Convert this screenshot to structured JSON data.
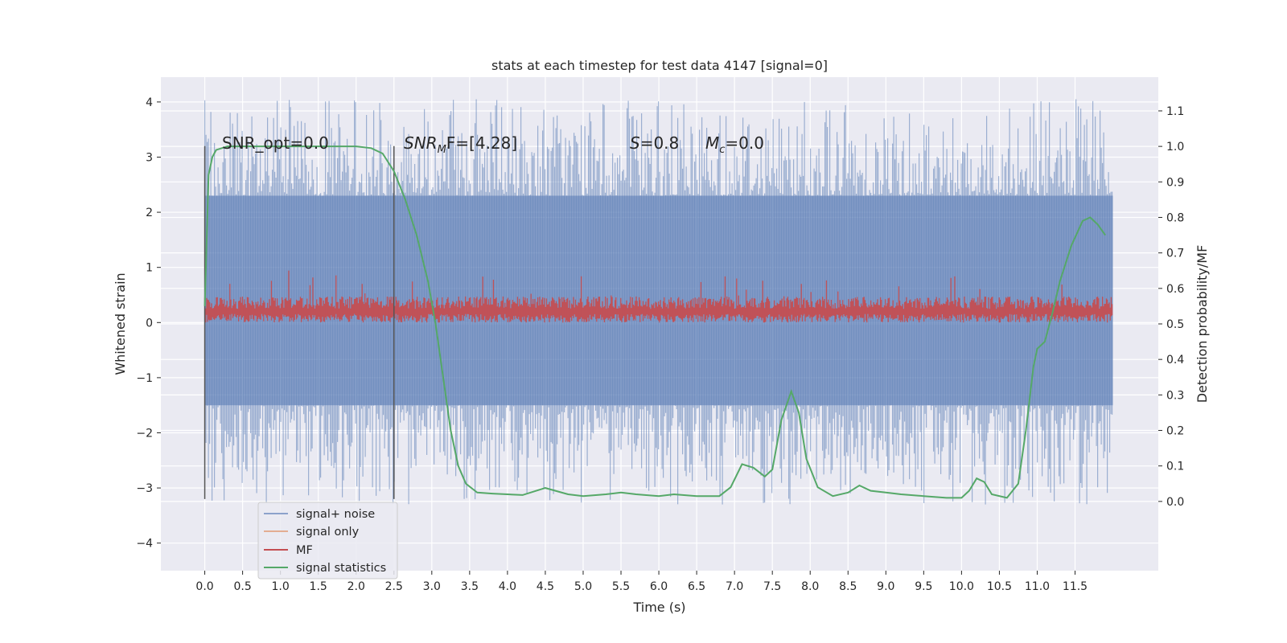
{
  "chart_data": {
    "type": "line",
    "title": "stats at each timestep for test data 4147 [signal=0]",
    "xlabel": "Time (s)",
    "ylabel_left": "Whitened strain",
    "ylabel_right": "Detection probability/MF",
    "xlim": [
      -0.58,
      12.6
    ],
    "ylim_left": [
      -4.5,
      4.45
    ],
    "ylim_right": [
      -0.195,
      1.195
    ],
    "x_ticks": [
      0.0,
      0.5,
      1.0,
      1.5,
      2.0,
      2.5,
      3.0,
      3.5,
      4.0,
      4.5,
      5.0,
      5.5,
      6.0,
      6.5,
      7.0,
      7.5,
      8.0,
      8.5,
      9.0,
      9.5,
      10.0,
      10.5,
      11.0,
      11.5
    ],
    "x_tick_labels": [
      "0.0",
      "0.5",
      "1.0",
      "1.5",
      "2.0",
      "2.5",
      "3.0",
      "3.5",
      "4.0",
      "4.5",
      "5.0",
      "5.5",
      "6.0",
      "6.5",
      "7.0",
      "7.5",
      "8.0",
      "8.5",
      "9.0",
      "9.5",
      "10.0",
      "10.5",
      "11.0",
      "11.5"
    ],
    "y_left_ticks": [
      -4,
      -3,
      -2,
      -1,
      0,
      1,
      2,
      3,
      4
    ],
    "y_left_tick_labels": [
      "−4",
      "−3",
      "−2",
      "−1",
      "0",
      "1",
      "2",
      "3",
      "4"
    ],
    "y_right_ticks": [
      0.0,
      0.1,
      0.2,
      0.3,
      0.4,
      0.5,
      0.6,
      0.7,
      0.8,
      0.9,
      1.0,
      1.1
    ],
    "y_right_tick_labels": [
      "0.0",
      "0.1",
      "0.2",
      "0.3",
      "0.4",
      "0.5",
      "0.6",
      "0.7",
      "0.8",
      "0.9",
      "1.0",
      "1.1"
    ],
    "grid": true,
    "legend_position": "lower-left",
    "noise_band": {
      "x_range": [
        0.0,
        12.0
      ],
      "main_low": -1.5,
      "main_high": 2.3,
      "spike_low": -3.3,
      "spike_high": 4.05
    },
    "mf_band": {
      "x_range": [
        0.0,
        12.0
      ],
      "low": 0.0,
      "high": 0.45,
      "spike_high": 1.0
    },
    "vertical_markers": [
      {
        "x": 0.0,
        "y_range": [
          -3.2,
          3.2
        ]
      },
      {
        "x": 2.5,
        "y_range": [
          -3.2,
          3.2
        ]
      }
    ],
    "series": [
      {
        "name": "signal+ noise",
        "color": "#4c72b0",
        "axis": "left"
      },
      {
        "name": "signal only",
        "color": "#dd8452",
        "axis": "left"
      },
      {
        "name": "MF",
        "color": "#c44e52",
        "axis": "left"
      },
      {
        "name": "signal statistics",
        "color": "#55a868",
        "axis": "right",
        "x": [
          0.0,
          0.05,
          0.1,
          0.15,
          0.3,
          0.6,
          1.0,
          1.5,
          2.0,
          2.2,
          2.35,
          2.5,
          2.65,
          2.8,
          2.95,
          3.05,
          3.15,
          3.25,
          3.35,
          3.45,
          3.6,
          3.8,
          4.0,
          4.2,
          4.5,
          4.8,
          5.0,
          5.3,
          5.5,
          5.7,
          6.0,
          6.2,
          6.5,
          6.8,
          6.95,
          7.1,
          7.25,
          7.4,
          7.5,
          7.62,
          7.75,
          7.85,
          7.95,
          8.1,
          8.3,
          8.5,
          8.65,
          8.8,
          9.0,
          9.2,
          9.5,
          9.8,
          10.0,
          10.1,
          10.2,
          10.3,
          10.4,
          10.6,
          10.75,
          10.85,
          10.95,
          11.0,
          11.1,
          11.2,
          11.3,
          11.45,
          11.6,
          11.7,
          11.8,
          11.9
        ],
        "values": [
          0.55,
          0.92,
          0.97,
          0.99,
          1.0,
          1.0,
          1.0,
          1.0,
          1.0,
          0.995,
          0.98,
          0.93,
          0.85,
          0.75,
          0.62,
          0.5,
          0.35,
          0.2,
          0.1,
          0.05,
          0.025,
          0.022,
          0.02,
          0.018,
          0.038,
          0.02,
          0.015,
          0.02,
          0.025,
          0.02,
          0.015,
          0.02,
          0.015,
          0.015,
          0.04,
          0.105,
          0.095,
          0.07,
          0.09,
          0.23,
          0.31,
          0.25,
          0.12,
          0.04,
          0.015,
          0.025,
          0.045,
          0.03,
          0.025,
          0.02,
          0.015,
          0.01,
          0.01,
          0.03,
          0.065,
          0.055,
          0.02,
          0.01,
          0.05,
          0.2,
          0.38,
          0.43,
          0.45,
          0.53,
          0.62,
          0.72,
          0.79,
          0.8,
          0.78,
          0.75
        ]
      }
    ],
    "annotations": [
      {
        "text": "SNR_opt=0.0"
      },
      {
        "base": "SNR",
        "sub": "M",
        "rest": "F=[4.28]"
      },
      {
        "base": "S",
        "sub": "",
        "rest": "=0.8"
      },
      {
        "base": "M",
        "sub": "c",
        "rest": "=0.0"
      }
    ]
  }
}
